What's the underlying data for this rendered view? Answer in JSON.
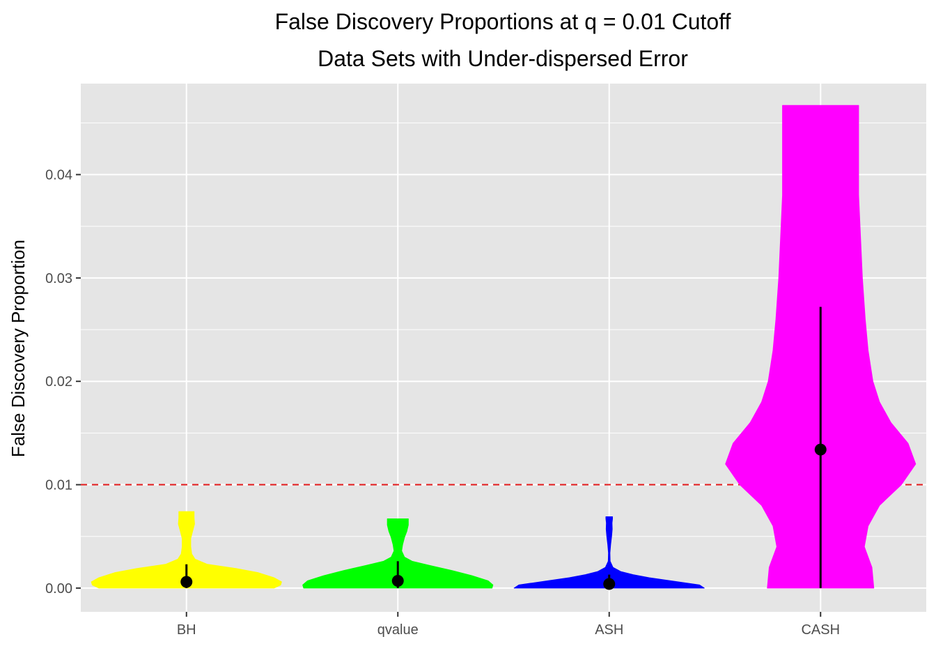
{
  "chart_data": {
    "type": "violin",
    "title": "False Discovery Proportions at q = 0.01 Cutoff",
    "subtitle": "Data Sets with Under-dispersed Error",
    "xlabel": "",
    "ylabel": "False Discovery Proportion",
    "ylim": [
      -0.0023,
      0.0488
    ],
    "y_ticks": [
      0.0,
      0.01,
      0.02,
      0.03,
      0.04
    ],
    "y_tick_labels": [
      "0.00",
      "0.01",
      "0.02",
      "0.03",
      "0.04"
    ],
    "categories": [
      "BH",
      "qvalue",
      "ASH",
      "CASH"
    ],
    "reference_line": {
      "y": 0.01,
      "color": "#e41a1c",
      "style": "dashed"
    },
    "grid": true,
    "legend": "none",
    "series": [
      {
        "category": "BH",
        "color": "#ffff00",
        "median": 0.0006,
        "whisker": [
          0.0,
          0.0023
        ],
        "max": 0.0074,
        "density": [
          [
            0.0,
            0.92
          ],
          [
            0.0003,
            0.99
          ],
          [
            0.0006,
            1.0
          ],
          [
            0.001,
            0.92
          ],
          [
            0.0015,
            0.75
          ],
          [
            0.0019,
            0.52
          ],
          [
            0.0023,
            0.22
          ],
          [
            0.0028,
            0.09
          ],
          [
            0.0033,
            0.055
          ],
          [
            0.004,
            0.045
          ],
          [
            0.0048,
            0.045
          ],
          [
            0.0055,
            0.065
          ],
          [
            0.0062,
            0.085
          ],
          [
            0.0068,
            0.08
          ],
          [
            0.0074,
            0.08
          ]
        ]
      },
      {
        "category": "qvalue",
        "color": "#00ff00",
        "median": 0.0007,
        "whisker": [
          0.0,
          0.0026
        ],
        "max": 0.0067,
        "density": [
          [
            0.0,
            0.99
          ],
          [
            0.0003,
            1.0
          ],
          [
            0.0007,
            0.95
          ],
          [
            0.0012,
            0.78
          ],
          [
            0.0017,
            0.57
          ],
          [
            0.0022,
            0.33
          ],
          [
            0.0026,
            0.15
          ],
          [
            0.003,
            0.07
          ],
          [
            0.0036,
            0.04
          ],
          [
            0.0042,
            0.05
          ],
          [
            0.0049,
            0.07
          ],
          [
            0.0055,
            0.095
          ],
          [
            0.0061,
            0.11
          ],
          [
            0.0065,
            0.11
          ],
          [
            0.0067,
            0.11
          ]
        ]
      },
      {
        "category": "ASH",
        "color": "#0000ff",
        "median": 0.0004,
        "whisker": [
          0.0,
          0.0013
        ],
        "max": 0.0069,
        "density": [
          [
            0.0,
            1.0
          ],
          [
            0.0003,
            0.95
          ],
          [
            0.0007,
            0.65
          ],
          [
            0.001,
            0.42
          ],
          [
            0.0013,
            0.25
          ],
          [
            0.0016,
            0.12
          ],
          [
            0.002,
            0.04
          ],
          [
            0.0026,
            0.01
          ],
          [
            0.0034,
            0.008
          ],
          [
            0.0042,
            0.015
          ],
          [
            0.005,
            0.025
          ],
          [
            0.0057,
            0.032
          ],
          [
            0.0063,
            0.03
          ],
          [
            0.0067,
            0.035
          ],
          [
            0.0069,
            0.035
          ]
        ]
      },
      {
        "category": "CASH",
        "color": "#ff00ff",
        "median": 0.0134,
        "whisker": [
          0.0,
          0.0272
        ],
        "max": 0.0467,
        "density": [
          [
            0.0,
            0.56
          ],
          [
            0.002,
            0.54
          ],
          [
            0.004,
            0.46
          ],
          [
            0.006,
            0.5
          ],
          [
            0.008,
            0.62
          ],
          [
            0.01,
            0.85
          ],
          [
            0.012,
            1.0
          ],
          [
            0.014,
            0.92
          ],
          [
            0.016,
            0.74
          ],
          [
            0.018,
            0.62
          ],
          [
            0.02,
            0.55
          ],
          [
            0.023,
            0.5
          ],
          [
            0.026,
            0.47
          ],
          [
            0.03,
            0.44
          ],
          [
            0.034,
            0.42
          ],
          [
            0.038,
            0.4
          ],
          [
            0.042,
            0.4
          ],
          [
            0.045,
            0.4
          ],
          [
            0.0467,
            0.4
          ]
        ]
      }
    ]
  }
}
